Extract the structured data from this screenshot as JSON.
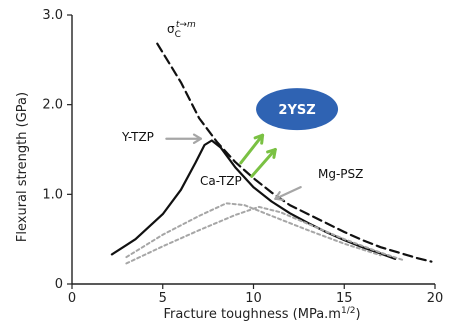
{
  "chart_data": {
    "type": "line",
    "xlabel": "Fracture toughness (MPa.m",
    "xlabel_sup": "1/2",
    "xlabel_close": ")",
    "ylabel": "Flexural strength (GPa)",
    "xlim": [
      0,
      20
    ],
    "ylim": [
      0,
      3.0
    ],
    "x_ticks": [
      0,
      5,
      10,
      15,
      20
    ],
    "y_ticks": [
      0,
      1.0,
      2.0,
      3.0
    ],
    "y_tick_labels": [
      "0",
      "1.0",
      "2.0",
      "3.0"
    ],
    "series": [
      {
        "id": "sigma",
        "name_main": "σ",
        "name_sub": "C",
        "name_sup": "t→m",
        "style": "dashed",
        "points": [
          [
            4.7,
            2.68
          ],
          [
            6,
            2.25
          ],
          [
            7,
            1.85
          ],
          [
            8,
            1.58
          ],
          [
            9,
            1.36
          ],
          [
            10,
            1.18
          ],
          [
            11,
            1.02
          ],
          [
            12,
            0.88
          ],
          [
            13,
            0.78
          ],
          [
            14,
            0.68
          ],
          [
            15,
            0.58
          ],
          [
            16,
            0.49
          ],
          [
            17,
            0.41
          ],
          [
            18,
            0.35
          ],
          [
            19,
            0.29
          ],
          [
            19.8,
            0.25
          ]
        ]
      },
      {
        "id": "ytzp",
        "name": "Y-TZP",
        "style": "solid",
        "points": [
          [
            2.2,
            0.33
          ],
          [
            3.5,
            0.5
          ],
          [
            5,
            0.78
          ],
          [
            6,
            1.05
          ],
          [
            6.8,
            1.35
          ],
          [
            7.3,
            1.55
          ],
          [
            7.7,
            1.6
          ],
          [
            8.2,
            1.52
          ],
          [
            9,
            1.3
          ],
          [
            10,
            1.08
          ],
          [
            11,
            0.92
          ],
          [
            12,
            0.79
          ],
          [
            13,
            0.68
          ],
          [
            14,
            0.58
          ],
          [
            15,
            0.49
          ],
          [
            16,
            0.41
          ],
          [
            17,
            0.34
          ],
          [
            17.8,
            0.28
          ]
        ]
      },
      {
        "id": "catzp",
        "name": "Ca-TZP",
        "style": "dotted",
        "points": [
          [
            3,
            0.3
          ],
          [
            5,
            0.55
          ],
          [
            7,
            0.76
          ],
          [
            8.5,
            0.9
          ],
          [
            9.5,
            0.88
          ],
          [
            11,
            0.76
          ],
          [
            13,
            0.6
          ],
          [
            15,
            0.45
          ],
          [
            17,
            0.32
          ]
        ]
      },
      {
        "id": "mgpsz",
        "name": "Mg-PSZ",
        "style": "dotted",
        "points": [
          [
            3,
            0.23
          ],
          [
            5,
            0.42
          ],
          [
            7,
            0.6
          ],
          [
            9,
            0.77
          ],
          [
            10.3,
            0.86
          ],
          [
            11.5,
            0.8
          ],
          [
            13,
            0.67
          ],
          [
            15,
            0.5
          ],
          [
            17,
            0.35
          ],
          [
            18.2,
            0.27
          ]
        ]
      }
    ],
    "badge": {
      "label": "2YSZ",
      "x": 12.4,
      "y": 1.95,
      "color": "#2f63b3"
    },
    "arrows": [
      {
        "target": "ytzp",
        "from": [
          5.2,
          1.62
        ],
        "to": [
          7.1,
          1.62
        ]
      },
      {
        "target": "mgpsz",
        "from": [
          12.6,
          1.08
        ],
        "to": [
          11.2,
          0.95
        ]
      }
    ],
    "green_arrows": [
      {
        "from": [
          9.3,
          1.35
        ],
        "to": [
          10.5,
          1.66
        ]
      },
      {
        "from": [
          9.9,
          1.2
        ],
        "to": [
          11.2,
          1.5
        ]
      }
    ],
    "colors": {
      "axis": "#222222",
      "series": "#111111",
      "dotted": "#a6a6a6",
      "arrow": "#a6a6a6",
      "green": "#7ac143",
      "background": "#ffffff"
    }
  }
}
